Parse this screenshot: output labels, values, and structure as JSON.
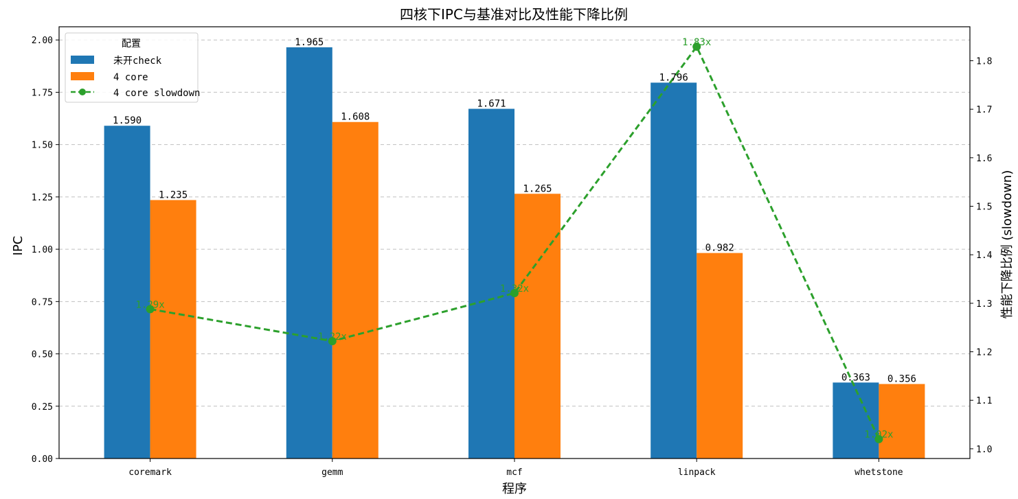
{
  "chart_data": {
    "type": "bar",
    "title": "四核下IPC与基准对比及性能下降比例",
    "xlabel": "程序",
    "ylabel": "IPC",
    "y2label": "性能下降比例 (slowdown)",
    "categories": [
      "coremark",
      "gemm",
      "mcf",
      "linpack",
      "whetstone"
    ],
    "ylim": [
      0,
      2.063
    ],
    "y2lim": [
      0.98,
      1.87
    ],
    "yticks": [
      "0.00",
      "0.25",
      "0.50",
      "0.75",
      "1.00",
      "1.25",
      "1.50",
      "1.75",
      "2.00"
    ],
    "y2ticks": [
      "1.0",
      "1.1",
      "1.2",
      "1.3",
      "1.4",
      "1.5",
      "1.6",
      "1.7",
      "1.8"
    ],
    "grid": "horizontal dashed",
    "legend_title": "配置",
    "legend_position": "upper-left",
    "series": [
      {
        "name": "未开check",
        "type": "bar",
        "color": "#1f77b4",
        "values": [
          1.59,
          1.965,
          1.671,
          1.796,
          0.363
        ],
        "labels": [
          "1.590",
          "1.965",
          "1.671",
          "1.796",
          "0.363"
        ]
      },
      {
        "name": "4 core",
        "type": "bar",
        "color": "#ff7f0e",
        "values": [
          1.235,
          1.608,
          1.265,
          0.982,
          0.356
        ],
        "labels": [
          "1.235",
          "1.608",
          "1.265",
          "0.982",
          "0.356"
        ]
      },
      {
        "name": "4 core slowdown",
        "type": "line",
        "axis": "right",
        "color": "#2ca02c",
        "style": "dashed with circle markers",
        "values": [
          1.288,
          1.222,
          1.321,
          1.829,
          1.02
        ],
        "labels": [
          "1.29x",
          "1.22x",
          "1.32x",
          "1.83x",
          "1.02x"
        ]
      }
    ]
  }
}
